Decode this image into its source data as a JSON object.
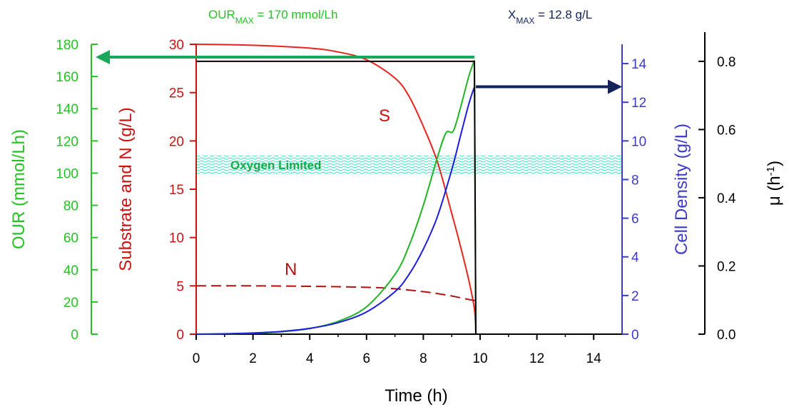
{
  "chart_data": {
    "type": "line",
    "xlabel": "Time (h)",
    "xlim": [
      0,
      15
    ],
    "xticks": [
      "0",
      "2",
      "4",
      "6",
      "8",
      "10",
      "12",
      "14"
    ],
    "axes": {
      "our": {
        "label": "OUR (mmol/Lh)",
        "range": [
          0,
          180
        ],
        "color": "#22c322",
        "ticks": [
          "0",
          "20",
          "40",
          "60",
          "80",
          "100",
          "120",
          "140",
          "160",
          "180"
        ]
      },
      "substrate": {
        "label": "Substrate and N (g/L)",
        "range": [
          0,
          30
        ],
        "color": "#cc1111",
        "ticks": [
          "0",
          "5",
          "10",
          "15",
          "20",
          "25",
          "30"
        ]
      },
      "cell_density": {
        "label": "Cell Density (g/L)",
        "range": [
          0,
          15
        ],
        "color": "#3a3acc",
        "ticks": [
          "0",
          "2",
          "4",
          "6",
          "8",
          "10",
          "12",
          "14"
        ]
      },
      "mu": {
        "label_base": "μ (h",
        "label_sup": "-1",
        "label_close": ")",
        "range": [
          0,
          0.85
        ],
        "color": "#000000",
        "ticks": [
          "0.0",
          "0.2",
          "0.4",
          "0.6",
          "0.8"
        ]
      }
    },
    "series": [
      {
        "name": "S",
        "axis": "substrate",
        "color": "#e8241c",
        "style": "solid",
        "x": [
          0,
          2,
          4,
          5,
          6,
          7,
          7.5,
          8,
          8.5,
          9,
          9.3,
          9.6,
          9.8,
          9.85
        ],
        "y": [
          30,
          29.9,
          29.6,
          29.2,
          28.4,
          26.5,
          24.6,
          21.5,
          17.8,
          12.5,
          9.2,
          5.6,
          2.6,
          0
        ]
      },
      {
        "name": "N",
        "axis": "substrate",
        "color": "#b21010",
        "style": "dashed",
        "x": [
          0,
          2,
          4,
          6,
          7,
          8,
          8.5,
          9,
          9.5,
          9.85
        ],
        "y": [
          5,
          5,
          4.95,
          4.85,
          4.7,
          4.4,
          4.2,
          3.95,
          3.65,
          3.45
        ]
      },
      {
        "name": "",
        "axis": "our",
        "color": "#22b422",
        "style": "solid",
        "x": [
          0,
          1,
          2,
          3,
          4,
          5,
          6,
          7,
          7.5,
          8,
          8.5,
          8.8,
          9.05,
          9.3,
          9.6,
          9.8,
          9.85
        ],
        "y": [
          0,
          0.2,
          0.6,
          1.5,
          3.5,
          8,
          17,
          37,
          55,
          80,
          110,
          125,
          126,
          140,
          160,
          170,
          0
        ]
      },
      {
        "name": "",
        "axis": "cell_density",
        "color": "#1c1ce0",
        "style": "solid",
        "x": [
          0,
          1,
          2,
          3,
          4,
          5,
          6,
          7,
          7.5,
          8,
          8.5,
          9,
          9.3,
          9.6,
          9.8
        ],
        "y": [
          0,
          0.02,
          0.06,
          0.14,
          0.3,
          0.6,
          1.15,
          2.2,
          3.1,
          4.4,
          6.1,
          8.5,
          10.2,
          11.9,
          12.8
        ]
      },
      {
        "name": "",
        "axis": "mu",
        "color": "#000000",
        "style": "solid",
        "x": [
          0,
          9.8,
          9.85,
          9.9
        ],
        "y": [
          0.8,
          0.8,
          0,
          0
        ]
      }
    ],
    "annotations": {
      "s_label": "S",
      "n_label": "N",
      "oxygen_limited": "Oxygen Limited",
      "our_max_base": "OUR",
      "our_max_sub": "MAX",
      "our_max_rest": " = 170 mmol/Lh",
      "x_max_base": "X",
      "x_max_sub": "MAX",
      "x_max_rest": " = 12.8 g/L",
      "oxygen_band_range_our": [
        99,
        111
      ],
      "our_max_value": 170,
      "x_max_value": 12.8
    },
    "colors": {
      "our_axis": "#22c322",
      "substrate_axis": "#cc1111",
      "cell_axis": "#3a3acc",
      "mu_axis": "#000000",
      "our_arrow": "#19a85a",
      "x_arrow": "#12245a",
      "oxygen_band": "#33e0c8",
      "oxygen_text": "#1aa84a"
    },
    "grid": false,
    "legend": "none"
  }
}
